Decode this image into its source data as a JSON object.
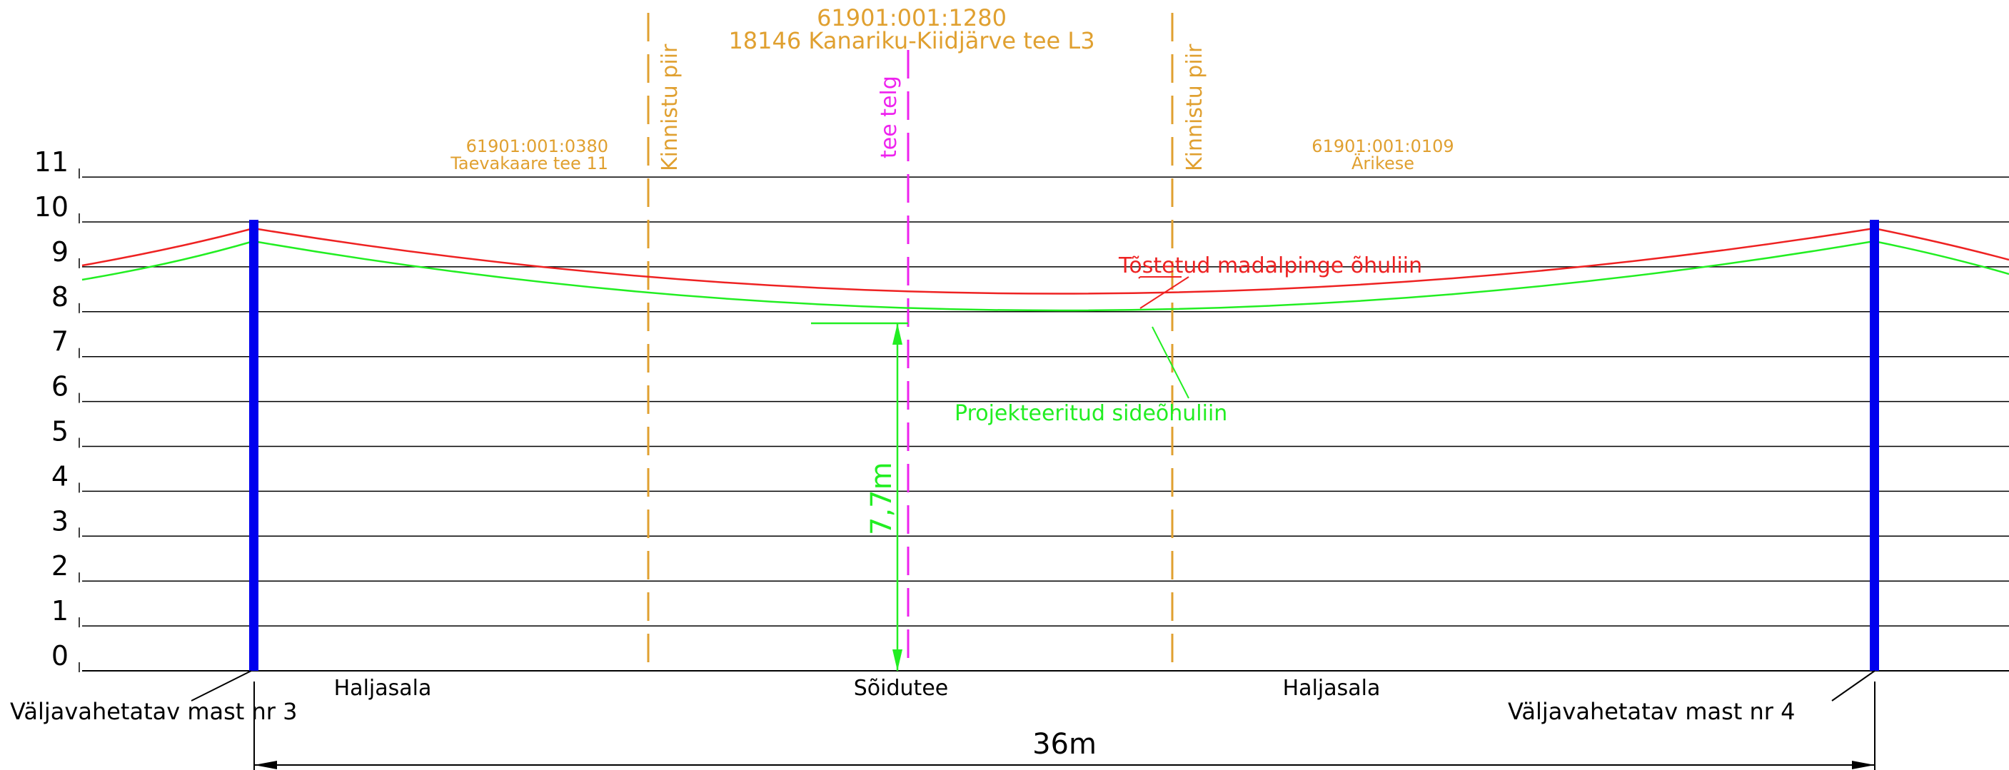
{
  "colors": {
    "grid": "#000000",
    "mast": "#0000ee",
    "boundary": "#e0a030",
    "axis": "#ee22ee",
    "power_line": "#ee2222",
    "comm_line": "#22ee22",
    "label_orange": "#e0a030",
    "text": "#000000"
  },
  "y_axis": {
    "ticks": [
      "0",
      "1",
      "2",
      "3",
      "4",
      "5",
      "6",
      "7",
      "8",
      "9",
      "10",
      "11"
    ]
  },
  "road_parcel": {
    "id": "61901:001:1280",
    "name": "18146 Kanariku-Kiidjärve tee L3"
  },
  "left_parcel": {
    "id": "61901:001:0380",
    "name": "Taevakaare tee 11"
  },
  "right_parcel": {
    "id": "61901:001:0109",
    "name": "Ärikese"
  },
  "boundaries": {
    "left_label": "Kinnistu piir",
    "right_label": "Kinnistu piir"
  },
  "axis_label": "tee telg",
  "lines": {
    "power_label": "Tõstetud madalpinge õhuliin",
    "comm_label": "Projekteeritud sideõhuliin"
  },
  "clearance_label": "7,7m",
  "ground": {
    "left": "Haljasala",
    "center": "Sõidutee",
    "right": "Haljasala"
  },
  "masts": {
    "left": "Väljavahetatav mast nr 3",
    "right": "Väljavahetatav mast nr 4"
  },
  "span_label": "36m"
}
